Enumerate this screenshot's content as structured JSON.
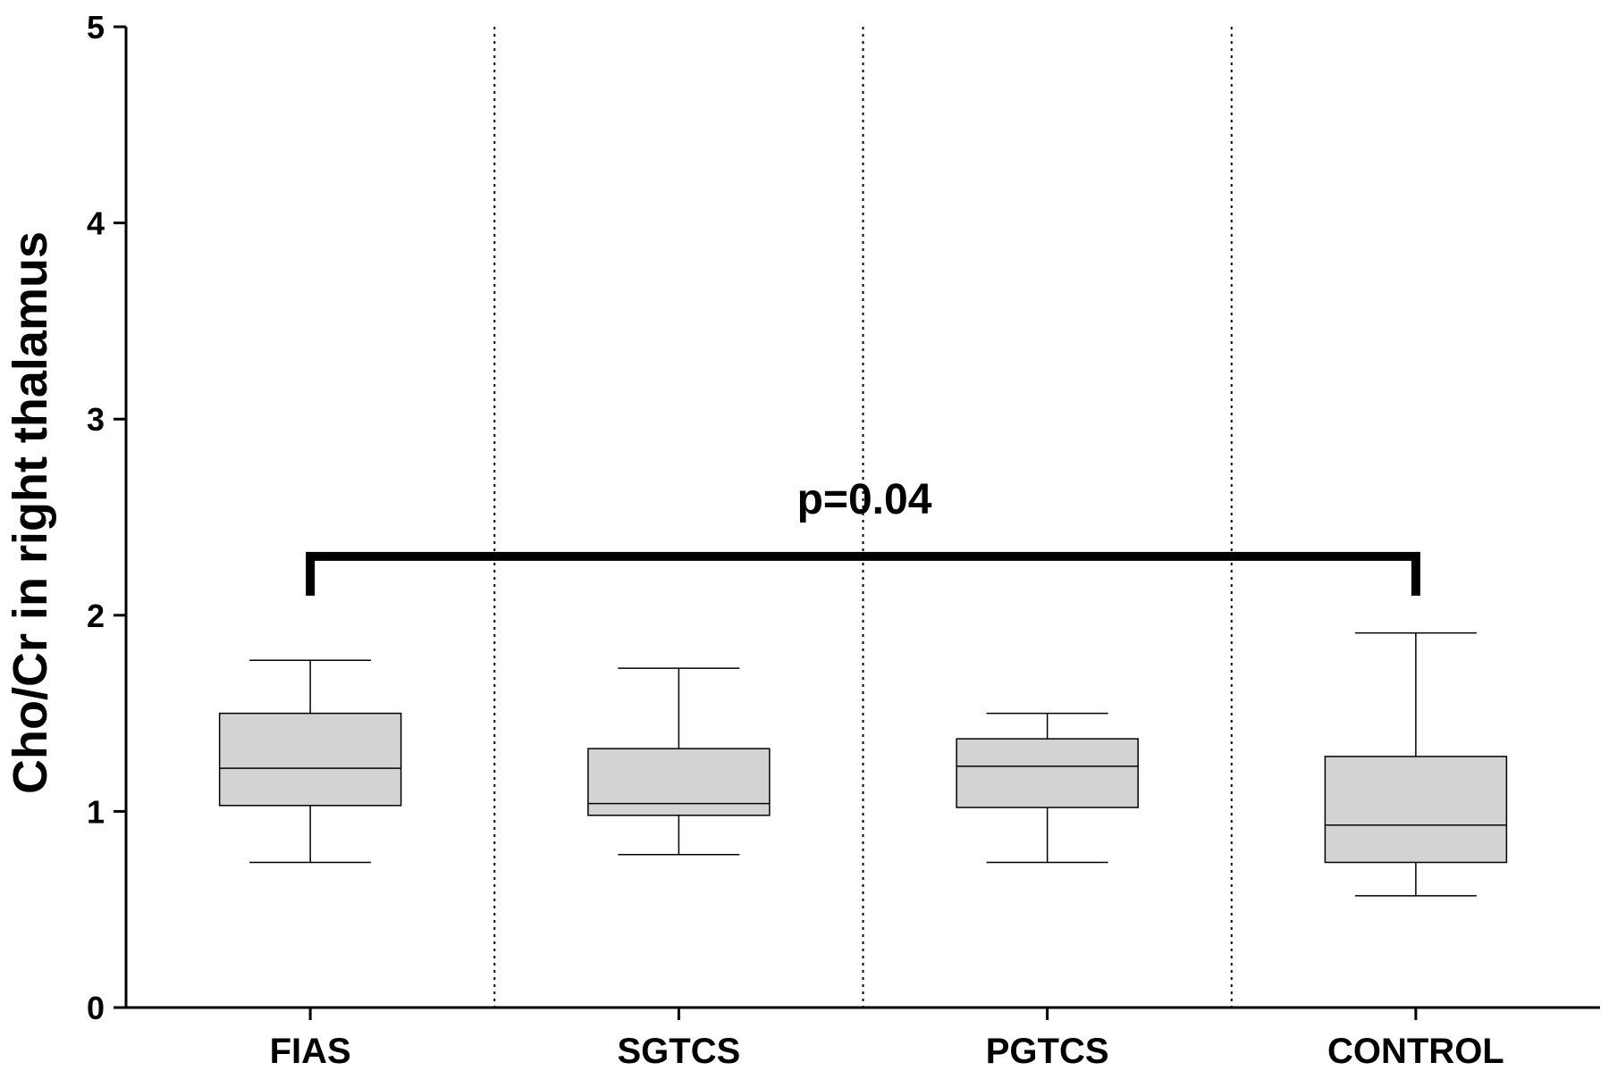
{
  "chart_data": {
    "type": "box",
    "ylabel": "Cho/Cr in right thalamus",
    "xlabel": "",
    "title": "",
    "ylim": [
      0,
      5
    ],
    "yticks": [
      "0",
      "1",
      "2",
      "3",
      "4",
      "5"
    ],
    "categories": [
      "FIAS",
      "SGTCS",
      "PGTCS",
      "CONTROL"
    ],
    "boxes": [
      {
        "category": "FIAS",
        "min": 0.74,
        "q1": 1.03,
        "median": 1.22,
        "q3": 1.5,
        "max": 1.77
      },
      {
        "category": "SGTCS",
        "min": 0.78,
        "q1": 0.98,
        "median": 1.04,
        "q3": 1.32,
        "max": 1.73
      },
      {
        "category": "PGTCS",
        "min": 0.74,
        "q1": 1.02,
        "median": 1.23,
        "q3": 1.37,
        "max": 1.5
      },
      {
        "category": "CONTROL",
        "min": 0.57,
        "q1": 0.74,
        "median": 0.93,
        "q3": 1.28,
        "max": 1.91
      }
    ],
    "box_fill": "#d3d3d3",
    "separators": "dotted vertical lines between groups",
    "significance": {
      "from": "FIAS",
      "to": "CONTROL",
      "label": "p=0.04",
      "y_bar": 2.3,
      "y_ends": 2.1
    }
  }
}
